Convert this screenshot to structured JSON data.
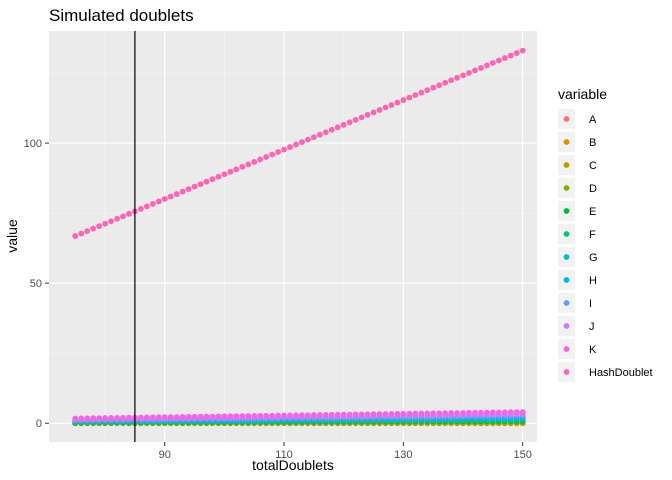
{
  "chart_data": {
    "type": "scatter",
    "title": "Simulated doublets",
    "xlabel": "totalDoublets",
    "ylabel": "value",
    "xlim": [
      70.6,
      152.4
    ],
    "ylim": [
      -6.7,
      140.0
    ],
    "x_ticks": [
      90,
      110,
      130,
      150
    ],
    "y_ticks": [
      0,
      50,
      100
    ],
    "x_minor_ticks": [
      80,
      100,
      120,
      140
    ],
    "y_minor_ticks": [
      25,
      75,
      125
    ],
    "x_range": [
      75,
      150
    ],
    "vline_x": 85,
    "grid": true,
    "legend_title": "variable",
    "legend_position": "right",
    "series": [
      {
        "name": "A",
        "color": "#F8766D",
        "start": 0.0,
        "end": 0.0
      },
      {
        "name": "B",
        "color": "#DE8C00",
        "start": 0.0,
        "end": 0.0
      },
      {
        "name": "C",
        "color": "#B79F00",
        "start": 0.0,
        "end": 0.0
      },
      {
        "name": "D",
        "color": "#7CAE00",
        "start": 0.0,
        "end": 0.5
      },
      {
        "name": "E",
        "color": "#00BA38",
        "start": 0.2,
        "end": 0.8
      },
      {
        "name": "F",
        "color": "#00C08B",
        "start": 0.4,
        "end": 1.2
      },
      {
        "name": "G",
        "color": "#00BFC4",
        "start": 0.6,
        "end": 1.6
      },
      {
        "name": "H",
        "color": "#00B4F0",
        "start": 0.8,
        "end": 2.0
      },
      {
        "name": "I",
        "color": "#619CFF",
        "start": 1.0,
        "end": 2.6
      },
      {
        "name": "J",
        "color": "#C77CFF",
        "start": 1.3,
        "end": 3.2
      },
      {
        "name": "K",
        "color": "#F564E3",
        "start": 1.7,
        "end": 4.0
      },
      {
        "name": "HashDoublet",
        "color": "#FF64B0",
        "start": 66.8,
        "end": 133.0
      }
    ]
  }
}
